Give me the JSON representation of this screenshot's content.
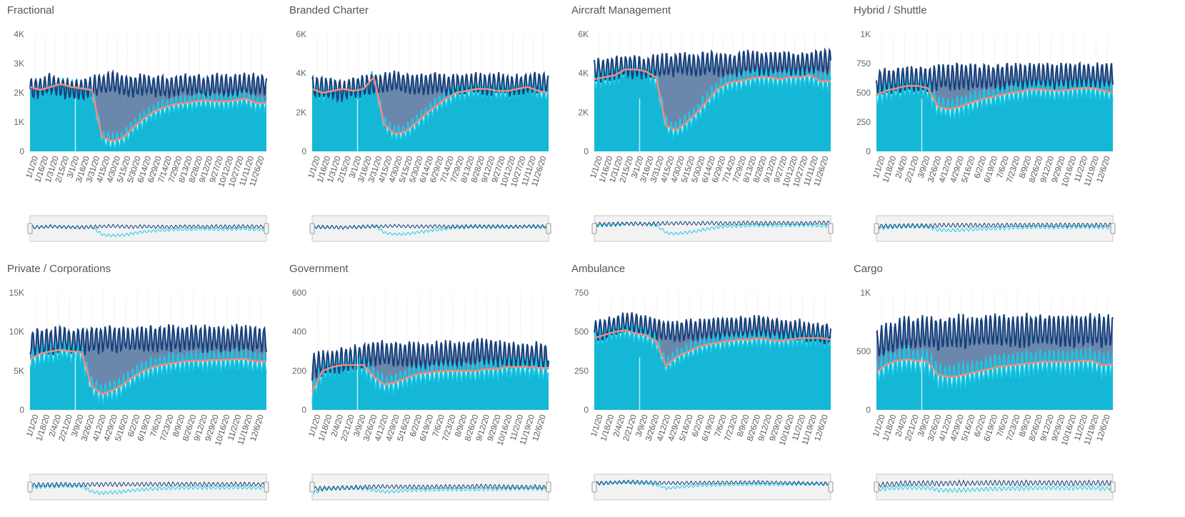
{
  "colors": {
    "total": "#173f7a",
    "baseline_line": "#1ecde8",
    "fill": "#14b8d6",
    "avg": "#f28a7e",
    "gap_fill": "#5b7aa3",
    "grid": "#d6d6d6",
    "navigator_bg": "#f2f2f2"
  },
  "chart_data": [
    {
      "type": "area",
      "title": "Fractional",
      "yticks": [
        "0",
        "1K",
        "2K",
        "3K",
        "4K"
      ],
      "ylim": [
        0,
        4000
      ],
      "xticks": [
        "1/1/20",
        "1/16/20",
        "1/31/20",
        "2/15/20",
        "3/1/20",
        "3/16/20",
        "3/31/20",
        "4/15/20",
        "4/30/20",
        "5/15/20",
        "5/30/20",
        "6/14/20",
        "6/29/20",
        "7/14/20",
        "7/29/20",
        "8/13/20",
        "8/28/20",
        "9/12/20",
        "9/27/20",
        "10/12/20",
        "10/27/20",
        "11/11/20",
        "11/26/20"
      ],
      "baseline_avg": [
        2100,
        2200,
        2300,
        2200,
        2100,
        2100,
        2200,
        2300,
        2400,
        2300,
        2200,
        2300,
        2250,
        2200,
        2200,
        2300,
        2300,
        2200,
        2300,
        2250,
        2250,
        2300,
        2300,
        2300
      ],
      "actual_avg": [
        2200,
        2100,
        2200,
        2300,
        2200,
        2150,
        2100,
        500,
        350,
        450,
        800,
        1100,
        1350,
        1500,
        1600,
        1650,
        1700,
        1750,
        1700,
        1700,
        1750,
        1800,
        1650,
        1650
      ],
      "amplitude": 600
    },
    {
      "type": "area",
      "title": "Branded Charter",
      "yticks": [
        "0",
        "2K",
        "4K",
        "6K"
      ],
      "ylim": [
        0,
        6000
      ],
      "xticks": [
        "1/1/20",
        "1/16/20",
        "1/31/20",
        "2/15/20",
        "3/1/20",
        "3/16/20",
        "3/31/20",
        "4/15/20",
        "4/30/20",
        "5/15/20",
        "5/30/20",
        "6/14/20",
        "6/29/20",
        "7/14/20",
        "7/29/20",
        "8/13/20",
        "8/28/20",
        "9/12/20",
        "9/27/20",
        "10/12/20",
        "10/27/20",
        "11/11/20",
        "11/26/20"
      ],
      "baseline_avg": [
        3300,
        3300,
        3200,
        3100,
        3300,
        3400,
        3400,
        3500,
        3600,
        3500,
        3400,
        3500,
        3500,
        3400,
        3400,
        3500,
        3500,
        3400,
        3500,
        3400,
        3400,
        3500,
        3500,
        3500
      ],
      "actual_avg": [
        3200,
        3000,
        3100,
        3200,
        3100,
        3200,
        3800,
        1400,
        900,
        1000,
        1400,
        1900,
        2300,
        2700,
        3000,
        3100,
        3200,
        3200,
        3100,
        3100,
        3200,
        3300,
        3100,
        3000
      ],
      "amplitude": 900
    },
    {
      "type": "area",
      "title": "Aircraft Management",
      "yticks": [
        "0",
        "2K",
        "4K",
        "6K"
      ],
      "ylim": [
        0,
        6000
      ],
      "xticks": [
        "1/1/20",
        "1/16/20",
        "1/31/20",
        "2/15/20",
        "3/1/20",
        "3/16/20",
        "3/31/20",
        "4/15/20",
        "4/30/20",
        "5/15/20",
        "5/30/20",
        "6/14/20",
        "6/29/20",
        "7/14/20",
        "7/29/20",
        "8/13/20",
        "8/28/20",
        "9/12/20",
        "9/27/20",
        "10/12/20",
        "10/27/20",
        "11/11/20",
        "11/26/20"
      ],
      "baseline_avg": [
        4200,
        4200,
        4300,
        4400,
        4300,
        4300,
        4400,
        4400,
        4500,
        4500,
        4400,
        4500,
        4500,
        4400,
        4500,
        4600,
        4500,
        4500,
        4600,
        4500,
        4500,
        4600,
        4600,
        4600
      ],
      "actual_avg": [
        3700,
        3800,
        3900,
        4200,
        4200,
        4100,
        3800,
        1300,
        1100,
        1500,
        2000,
        2600,
        3200,
        3500,
        3600,
        3700,
        3800,
        3800,
        3700,
        3800,
        3800,
        3900,
        3600,
        3600
      ],
      "amplitude": 1000
    },
    {
      "type": "area",
      "title": "Hybrid / Shuttle",
      "yticks": [
        "0",
        "250",
        "500",
        "750",
        "1K"
      ],
      "ylim": [
        0,
        1000
      ],
      "xticks": [
        "1/1/20",
        "1/18/20",
        "2/4/20",
        "2/21/20",
        "3/9/20",
        "3/26/20",
        "4/12/20",
        "4/29/20",
        "5/16/20",
        "6/2/20",
        "6/19/20",
        "7/6/20",
        "7/23/20",
        "8/9/20",
        "8/26/20",
        "9/12/20",
        "9/29/20",
        "10/16/20",
        "11/2/20",
        "11/19/20",
        "12/6/20"
      ],
      "baseline_avg": [
        600,
        610,
        600,
        620,
        610,
        620,
        630,
        630,
        640,
        640,
        630,
        640,
        640,
        650,
        640,
        650,
        650,
        640,
        650,
        650,
        650,
        650,
        650,
        650
      ],
      "actual_avg": [
        480,
        520,
        540,
        560,
        560,
        540,
        380,
        360,
        380,
        410,
        440,
        460,
        480,
        500,
        510,
        530,
        530,
        520,
        520,
        530,
        540,
        540,
        520,
        500
      ],
      "amplitude": 180
    },
    {
      "type": "area",
      "title": "Private / Corporations",
      "yticks": [
        "0",
        "5K",
        "10K",
        "15K"
      ],
      "ylim": [
        0,
        15000
      ],
      "xticks": [
        "1/1/20",
        "1/18/20",
        "2/4/20",
        "2/21/20",
        "3/9/20",
        "3/26/20",
        "4/12/20",
        "4/29/20",
        "5/16/20",
        "6/2/20",
        "6/19/20",
        "7/6/20",
        "7/23/20",
        "8/9/20",
        "8/26/20",
        "9/12/20",
        "9/29/20",
        "10/16/20",
        "11/2/20",
        "11/19/20",
        "12/6/20"
      ],
      "baseline_avg": [
        8500,
        8800,
        8800,
        9000,
        8900,
        8800,
        9000,
        9000,
        9100,
        9100,
        9000,
        9100,
        9100,
        9200,
        9100,
        9200,
        9200,
        9100,
        9200,
        9100,
        9200,
        9200,
        9100,
        9100
      ],
      "actual_avg": [
        6500,
        7200,
        7500,
        7700,
        7500,
        7400,
        3000,
        2000,
        2500,
        3200,
        4200,
        5000,
        5500,
        5800,
        6000,
        6200,
        6300,
        6300,
        6400,
        6400,
        6500,
        6500,
        6200,
        6200
      ],
      "amplitude": 2800
    },
    {
      "type": "area",
      "title": "Government",
      "yticks": [
        "0",
        "200",
        "400",
        "600"
      ],
      "ylim": [
        0,
        600
      ],
      "xticks": [
        "1/1/20",
        "1/18/20",
        "2/4/20",
        "2/21/20",
        "3/9/20",
        "3/26/20",
        "4/12/20",
        "4/29/20",
        "5/16/20",
        "6/2/20",
        "6/19/20",
        "7/6/20",
        "7/23/20",
        "8/9/20",
        "8/26/20",
        "9/12/20",
        "9/29/20",
        "10/16/20",
        "11/2/20",
        "11/19/20",
        "12/6/20"
      ],
      "baseline_avg": [
        220,
        240,
        250,
        250,
        260,
        280,
        290,
        290,
        290,
        280,
        280,
        280,
        290,
        290,
        290,
        290,
        300,
        300,
        290,
        280,
        280,
        280,
        280,
        280
      ],
      "actual_avg": [
        90,
        200,
        220,
        230,
        230,
        230,
        170,
        130,
        140,
        160,
        180,
        190,
        195,
        200,
        200,
        200,
        200,
        210,
        210,
        220,
        220,
        220,
        215,
        215
      ],
      "amplitude": 110
    },
    {
      "type": "area",
      "title": "Ambulance",
      "yticks": [
        "0",
        "250",
        "500",
        "750"
      ],
      "ylim": [
        0,
        750
      ],
      "xticks": [
        "1/1/20",
        "1/18/20",
        "2/4/20",
        "2/21/20",
        "3/9/20",
        "3/26/20",
        "4/12/20",
        "4/29/20",
        "5/16/20",
        "6/2/20",
        "6/19/20",
        "7/6/20",
        "7/23/20",
        "8/9/20",
        "8/26/20",
        "9/12/20",
        "9/29/20",
        "10/16/20",
        "11/2/20",
        "11/19/20",
        "12/6/20"
      ],
      "baseline_avg": [
        500,
        520,
        540,
        560,
        550,
        540,
        520,
        500,
        500,
        510,
        510,
        520,
        520,
        530,
        530,
        530,
        540,
        530,
        520,
        510,
        510,
        500,
        490,
        490
      ],
      "actual_avg": [
        460,
        480,
        500,
        510,
        490,
        480,
        440,
        280,
        340,
        370,
        400,
        420,
        430,
        440,
        450,
        450,
        460,
        450,
        440,
        450,
        460,
        460,
        460,
        450
      ],
      "amplitude": 110
    },
    {
      "type": "area",
      "title": "Cargo",
      "yticks": [
        "0",
        "500",
        "1K"
      ],
      "ylim": [
        0,
        1000
      ],
      "xticks": [
        "1/1/20",
        "1/18/20",
        "2/4/20",
        "2/21/20",
        "3/9/20",
        "3/26/20",
        "4/12/20",
        "4/29/20",
        "5/16/20",
        "6/2/20",
        "6/19/20",
        "7/6/20",
        "7/23/20",
        "8/9/20",
        "8/26/20",
        "9/12/20",
        "9/29/20",
        "10/16/20",
        "11/2/20",
        "11/19/20",
        "12/6/20"
      ],
      "baseline_avg": [
        560,
        600,
        640,
        650,
        660,
        660,
        650,
        660,
        670,
        660,
        670,
        670,
        680,
        670,
        670,
        680,
        680,
        670,
        680,
        680,
        670,
        680,
        670,
        670
      ],
      "actual_avg": [
        320,
        390,
        420,
        430,
        420,
        410,
        300,
        280,
        290,
        310,
        330,
        350,
        370,
        380,
        390,
        400,
        410,
        410,
        410,
        410,
        420,
        420,
        380,
        390
      ],
      "amplitude": 230
    }
  ]
}
